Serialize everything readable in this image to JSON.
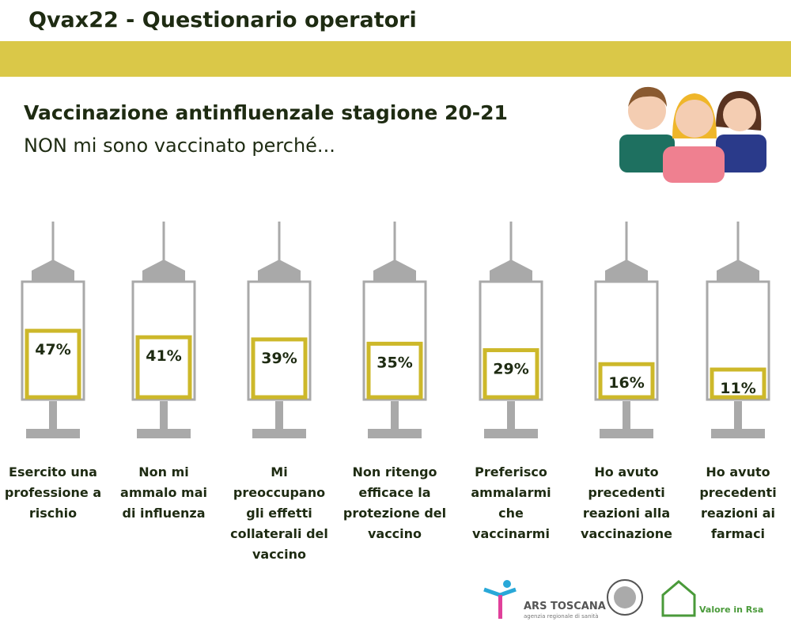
{
  "header": {
    "title": "Qvax22 - Questionario operatori"
  },
  "chart_data": {
    "type": "syringe",
    "title": "Vaccinazione antinfluenzale  stagione 20-21",
    "subtitle": "NON mi sono vaccinato perché...",
    "categories": [
      "Esercito una professione a rischio",
      "Non mi ammalo mai di influenza",
      "Mi preoccupano gli effetti collaterali del vaccino",
      "Non ritengo efficace la protezione del vaccino",
      "Preferisco ammalarmi che vaccinarmi",
      "Ho avuto precedenti reazioni alla vaccinazione",
      "Ho avuto precedenti reazioni ai farmaci"
    ],
    "values": [
      47,
      41,
      39,
      35,
      29,
      16,
      11
    ],
    "value_labels": [
      "47%",
      "41%",
      "39%",
      "35%",
      "29%",
      "16%",
      "11%"
    ],
    "color": "#cdb82a"
  },
  "logos": {
    "ars": "ARS TOSCANA",
    "ars_sub": "agenzia regionale di sanità",
    "rsa": "Valore in Rsa"
  }
}
